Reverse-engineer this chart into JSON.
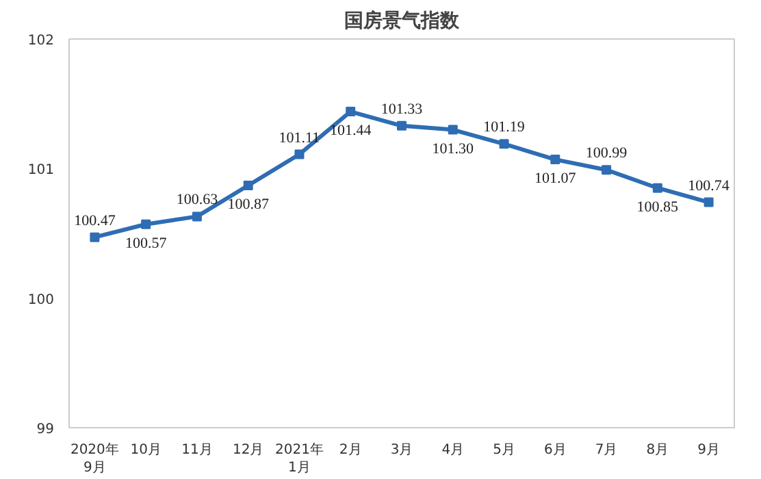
{
  "chart_data": {
    "type": "line",
    "title": "国房景气指数",
    "categories": [
      "2020年\n9月",
      "10月",
      "11月",
      "12月",
      "2021年\n1月",
      "2月",
      "3月",
      "4月",
      "5月",
      "6月",
      "7月",
      "8月",
      "9月"
    ],
    "series": [
      {
        "color": "#2e6db4",
        "values": [
          100.47,
          100.57,
          100.63,
          100.87,
          101.11,
          101.44,
          101.33,
          101.3,
          101.19,
          101.07,
          100.99,
          100.85,
          100.74
        ],
        "value_labels": [
          "100.47",
          "100.57",
          "100.63",
          "100.87",
          "101.11",
          "101.44",
          "101.33",
          "101.30",
          "101.19",
          "101.07",
          "100.99",
          "100.85",
          "100.74"
        ]
      }
    ],
    "ylim": [
      99,
      102
    ],
    "yticks": [
      99,
      100,
      101,
      102
    ],
    "grid": false,
    "marker": "square",
    "line_style": "solid"
  }
}
